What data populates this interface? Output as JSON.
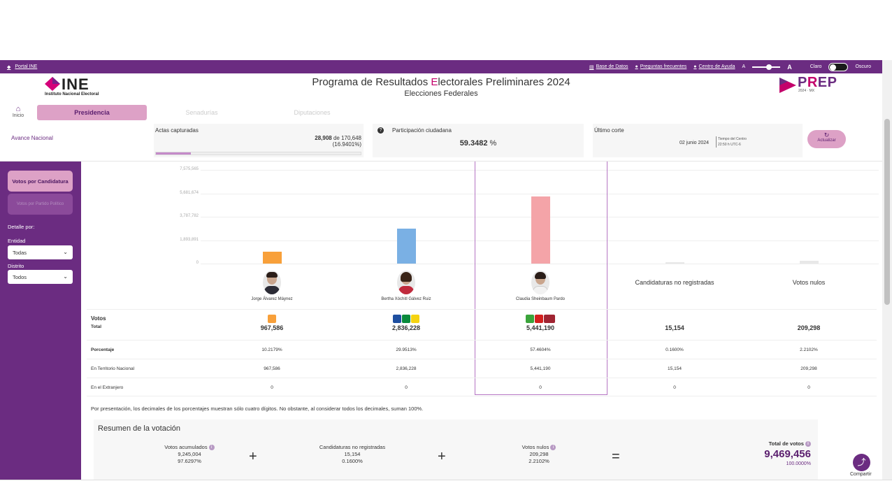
{
  "topbar": {
    "portal": "Portal INE",
    "links": [
      "Base de Datos",
      "Preguntas frecuentes",
      "Centro de Ayuda"
    ],
    "font_small": "A",
    "font_large": "A",
    "theme_light": "Claro",
    "theme_dark": "Oscuro"
  },
  "header": {
    "ine_logo_text": "INE",
    "ine_subtitle": "Instituto Nacional Electoral",
    "title_pre": "Programa de Resultados ",
    "title_e": "E",
    "title_post": "lectorales Preliminares 2024",
    "subtitle": "Elecciones Federales",
    "prep_p": "P",
    "prep_r": "R",
    "prep_ep": "EP",
    "prep_sub": "2024 · MX"
  },
  "nav": {
    "inicio": "Inicio",
    "tabs": [
      "Presidencia",
      "Senadurías",
      "Diputaciones"
    ]
  },
  "stats": {
    "avance": "Avance Nacional",
    "actas_label": "Actas capturadas",
    "actas_count": "28,908",
    "actas_total": " de 170,648",
    "actas_pct": "(16.9401%)",
    "actas_fraction": 0.169401,
    "participacion_label": "Participación ciudadana",
    "participacion_value": "59.3482",
    "participacion_unit": " %",
    "corte_label": "Último corte",
    "corte_date": "02 junio 2024",
    "corte_tz1": "Tiempo del Centro",
    "corte_tz2": "22:50 h UTC-6",
    "actualizar": "Actualizar"
  },
  "sidebar": {
    "btn_candidatura": "Votos por Candidatura",
    "btn_partido": "Votos por Partido Político",
    "detalle": "Detalle por:",
    "entidad_label": "Entidad",
    "entidad_value": "Todas",
    "distrito_label": "Distrito",
    "distrito_value": "Todos"
  },
  "chart_data": {
    "type": "bar",
    "categories": [
      "Jorge Álvarez Máynez",
      "Bertha Xóchitl Gálvez Ruiz",
      "Claudia Sheinbaum Pardo",
      "Candidaturas no registradas",
      "Votos nulos"
    ],
    "values": [
      967586,
      2836228,
      5441190,
      15154,
      209298
    ],
    "colors": [
      "#f8a03a",
      "#7ab0e4",
      "#f4a4a8",
      "#e8e8e8",
      "#e8e8e8"
    ],
    "yticks": [
      "0",
      "1,893,891",
      "3,787,782",
      "5,681,674",
      "7,575,565"
    ],
    "ylim": [
      0,
      7575565
    ]
  },
  "table": {
    "votos_label": "Votos",
    "total_label": "Total",
    "rows": [
      {
        "label": "Porcentaje",
        "values": [
          "10.2179%",
          "29.9513%",
          "57.4604%",
          "0.1600%",
          "2.2102%"
        ]
      },
      {
        "label": "En Territorio Nacional",
        "values": [
          "967,586",
          "2,836,228",
          "5,441,190",
          "15,154",
          "209,298"
        ]
      },
      {
        "label": "En el Extranjero",
        "values": [
          "0",
          "0",
          "0",
          "0",
          "0"
        ]
      }
    ],
    "totals": [
      "967,586",
      "2,836,228",
      "5,441,190",
      "15,154",
      "209,298"
    ]
  },
  "note": "Por presentación, los decimales de los porcentajes muestran sólo cuatro dígitos. No obstante, al considerar todos los decimales, suman 100%.",
  "resumen": {
    "title": "Resumen de la votación",
    "acumulados_label": "Votos acumulados",
    "acumulados_value": "9,245,004",
    "acumulados_pct": "97.6297%",
    "noreg_label": "Candidaturas no registradas",
    "noreg_value": "15,154",
    "noreg_pct": "0.1600%",
    "nulos_label": "Votos nulos",
    "nulos_value": "209,298",
    "nulos_pct": "2.2102%",
    "plus": "+",
    "equals": "=",
    "total_label": "Total de votos",
    "total_value": "9,469,456",
    "total_pct": "100.0000%"
  },
  "share_label": "Compartir"
}
